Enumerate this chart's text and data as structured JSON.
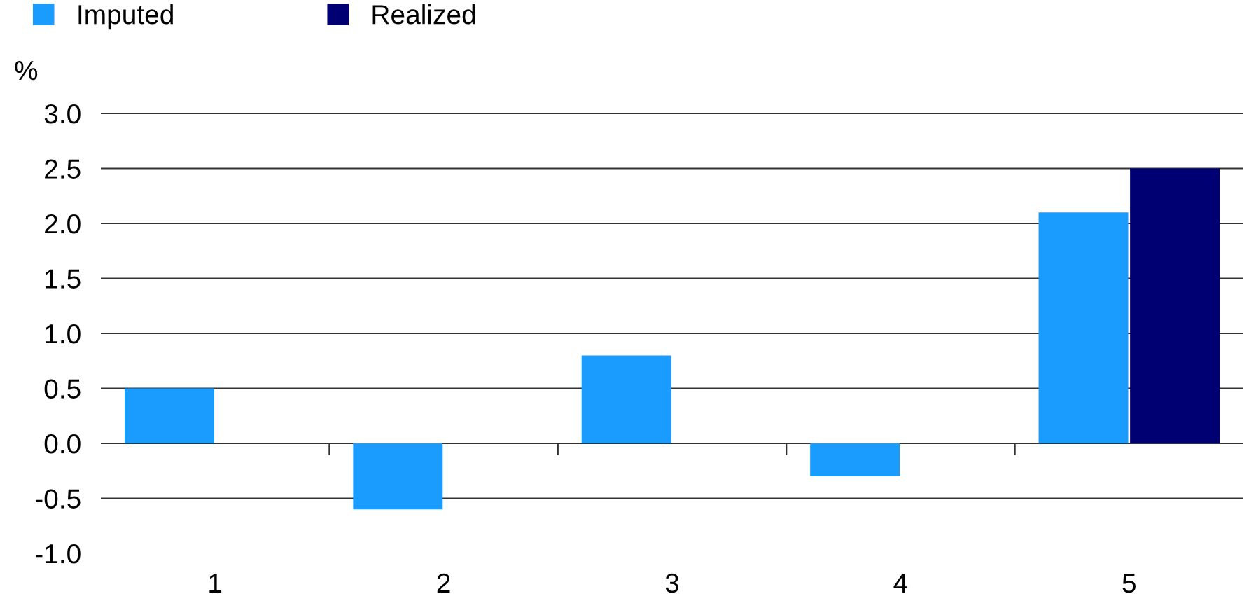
{
  "chart_data": {
    "type": "bar",
    "ylabel": "%",
    "categories": [
      "1",
      "2",
      "3",
      "4",
      "5"
    ],
    "series": [
      {
        "name": "Imputed",
        "color": "#1a9cff",
        "values": [
          0.5,
          -0.6,
          0.8,
          -0.3,
          2.1
        ]
      },
      {
        "name": "Realized",
        "color": "#000073",
        "values": [
          null,
          null,
          null,
          null,
          2.5
        ]
      }
    ],
    "ylim": [
      -1.0,
      3.0
    ],
    "yticks": [
      {
        "value": -1,
        "label": "-1.0"
      },
      -0.5,
      {
        "value": 0,
        "label": "0.0"
      },
      0.5,
      {
        "value": 1,
        "label": "1.0"
      },
      1.5,
      {
        "value": 2,
        "label": "2.0"
      },
      2.5,
      {
        "value": 3,
        "label": "3.0"
      }
    ],
    "grid": "y",
    "legend": "top left"
  }
}
